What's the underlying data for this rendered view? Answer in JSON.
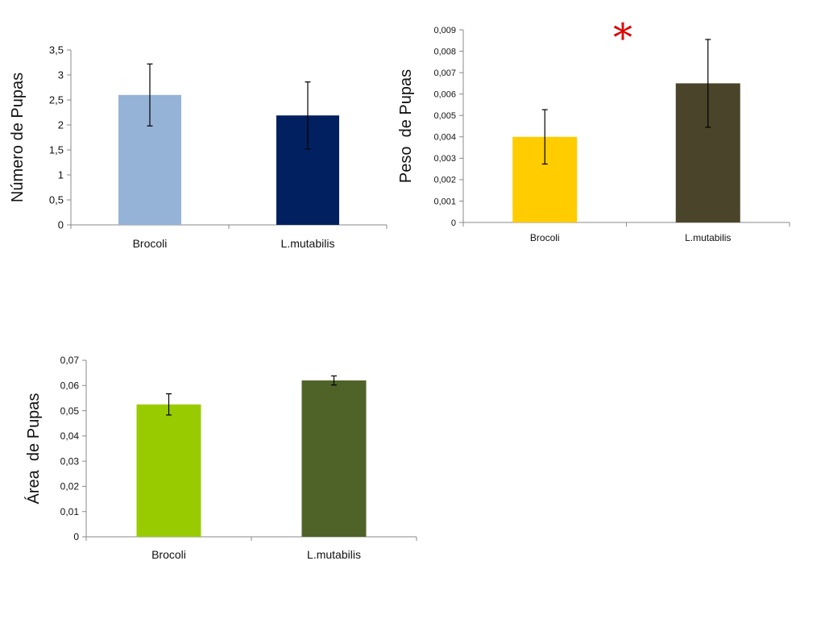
{
  "chart_data": [
    {
      "type": "bar",
      "categories": [
        "Brocoli",
        "L.mutabilis"
      ],
      "values": [
        2.6,
        2.19
      ],
      "errors": [
        0.62,
        0.67
      ],
      "colors": [
        "#95b3d7",
        "#002060"
      ],
      "ylabel": "Número de Pupas",
      "xlabel": "",
      "ylim": [
        0,
        3.5
      ],
      "yticks": [
        "0",
        "0,5",
        "1",
        "1,5",
        "2",
        "2,5",
        "3",
        "3,5"
      ],
      "grid": false
    },
    {
      "type": "bar",
      "categories": [
        "Brocoli",
        "L.mutabilis"
      ],
      "values": [
        0.004,
        0.0065
      ],
      "errors": [
        0.00127,
        0.00205
      ],
      "colors": [
        "#ffcc00",
        "#4a452a"
      ],
      "ylabel": "Peso  de Pupas",
      "xlabel": "",
      "ylim": [
        0,
        0.009
      ],
      "yticks": [
        "0",
        "0,001",
        "0,002",
        "0,003",
        "0,004",
        "0,005",
        "0,006",
        "0,007",
        "0,008",
        "0,009"
      ],
      "grid": false,
      "annotation": "*"
    },
    {
      "type": "bar",
      "categories": [
        "Brocoli",
        "L.mutabilis"
      ],
      "values": [
        0.0525,
        0.062
      ],
      "errors": [
        0.0042,
        0.0018
      ],
      "colors": [
        "#99cc00",
        "#4f6228"
      ],
      "ylabel": "Área  de Pupas",
      "xlabel": "",
      "ylim": [
        0,
        0.07
      ],
      "yticks": [
        "0",
        "0,01",
        "0,02",
        "0,03",
        "0,04",
        "0,05",
        "0,06",
        "0,07"
      ],
      "grid": false
    }
  ]
}
